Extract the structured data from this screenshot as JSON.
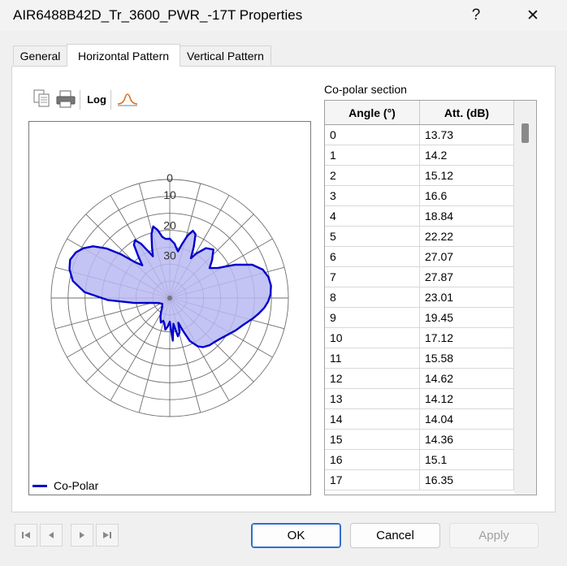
{
  "window": {
    "title": "AIR6488B42D_Tr_3600_PWR_-17T Properties",
    "help_label": "?",
    "close_label": "✕"
  },
  "tabs": [
    {
      "label": "General"
    },
    {
      "label": "Horizontal Pattern"
    },
    {
      "label": "Vertical Pattern"
    }
  ],
  "toolbar": {
    "log_label": "Log"
  },
  "polar": {
    "ring_labels": [
      "0",
      "10",
      "20",
      "30"
    ],
    "legend": "Co-Polar",
    "series_color": "#0000cc",
    "fill_color": "#b8b8f2"
  },
  "table": {
    "caption": "Co-polar section",
    "headers": [
      "Angle (°)",
      "Att. (dB)"
    ],
    "rows": [
      [
        "0",
        "13.73"
      ],
      [
        "1",
        "14.2"
      ],
      [
        "2",
        "15.12"
      ],
      [
        "3",
        "16.6"
      ],
      [
        "4",
        "18.84"
      ],
      [
        "5",
        "22.22"
      ],
      [
        "6",
        "27.07"
      ],
      [
        "7",
        "27.87"
      ],
      [
        "8",
        "23.01"
      ],
      [
        "9",
        "19.45"
      ],
      [
        "10",
        "17.12"
      ],
      [
        "11",
        "15.58"
      ],
      [
        "12",
        "14.62"
      ],
      [
        "13",
        "14.12"
      ],
      [
        "14",
        "14.04"
      ],
      [
        "15",
        "14.36"
      ],
      [
        "16",
        "15.1"
      ],
      [
        "17",
        "16.35"
      ]
    ]
  },
  "buttons": {
    "ok": "OK",
    "cancel": "Cancel",
    "apply": "Apply"
  }
}
